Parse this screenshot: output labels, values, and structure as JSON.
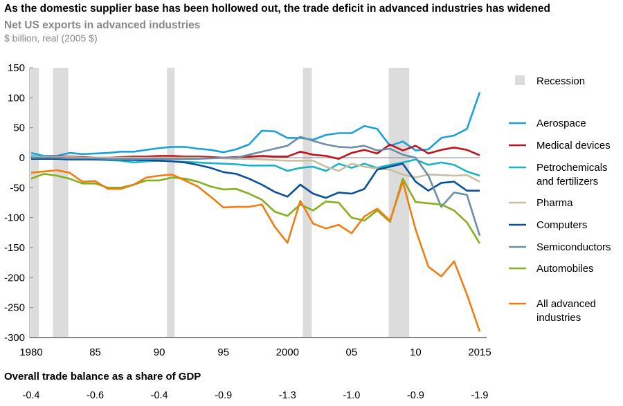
{
  "title": "As the domestic supplier base has been hollowed out, the trade deficit in advanced industries has widened",
  "subtitle": "Net US exports in advanced industries",
  "unit": "$ billion, real (2005 $)",
  "gdp_row": {
    "title": "Overall trade balance as a share of GDP",
    "values": [
      "-0.4",
      "-0.6",
      "-0.4",
      "-0.9",
      "-1.3",
      "-1.0",
      "-0.9",
      "-1.9"
    ]
  },
  "chart_data": {
    "type": "line",
    "title": "Net US exports in advanced industries",
    "ylabel": "$ billion, real (2005 $)",
    "ylim": [
      -300,
      150
    ],
    "yticks": [
      150,
      100,
      50,
      0,
      -50,
      -100,
      -150,
      -200,
      -250,
      -300
    ],
    "xlim": [
      1980,
      2015
    ],
    "xticks": [
      1980,
      1985,
      1990,
      1995,
      2000,
      2005,
      2010,
      2015
    ],
    "xtick_labels": [
      "1980",
      "85",
      "90",
      "95",
      "2000",
      "05",
      "10",
      "2015"
    ],
    "legend_position": "right",
    "recession_label": "Recession",
    "recessions": [
      [
        1980,
        1980.6
      ],
      [
        1981.7,
        1982.9
      ],
      [
        1990.6,
        1991.2
      ],
      [
        2001.2,
        2001.9
      ],
      [
        2007.9,
        2009.5
      ]
    ],
    "x": [
      1980,
      1981,
      1982,
      1983,
      1984,
      1985,
      1986,
      1987,
      1988,
      1989,
      1990,
      1991,
      1992,
      1993,
      1994,
      1995,
      1996,
      1997,
      1998,
      1999,
      2000,
      2001,
      2002,
      2003,
      2004,
      2005,
      2006,
      2007,
      2008,
      2009,
      2010,
      2011,
      2012,
      2013,
      2014,
      2015
    ],
    "series": [
      {
        "name": "Aerospace",
        "color": "#1aa0d8",
        "values": [
          8,
          3,
          3,
          8,
          6,
          7,
          8,
          10,
          10,
          13,
          16,
          18,
          18,
          15,
          13,
          9,
          14,
          22,
          45,
          44,
          33,
          33,
          30,
          38,
          41,
          41,
          53,
          48,
          20,
          27,
          12,
          14,
          33,
          37,
          48,
          109
        ]
      },
      {
        "name": "Medical devices",
        "color": "#c0141e",
        "values": [
          0,
          1,
          2,
          2,
          1,
          0,
          0,
          1,
          2,
          2,
          3,
          3,
          2,
          2,
          1,
          0,
          1,
          2,
          3,
          2,
          2,
          10,
          5,
          3,
          -2,
          8,
          13,
          7,
          22,
          12,
          20,
          7,
          13,
          17,
          13,
          4
        ]
      },
      {
        "name": "Petrochemicals and fertilizers",
        "color": "#1ab2c8",
        "values": [
          3,
          1,
          0,
          -1,
          -2,
          -3,
          -4,
          -5,
          -8,
          -6,
          -5,
          -6,
          -7,
          -8,
          -9,
          -10,
          -11,
          -13,
          -13,
          -13,
          -22,
          -17,
          -15,
          -22,
          -10,
          -17,
          -10,
          -17,
          -12,
          -8,
          -3,
          -12,
          -8,
          -12,
          -23,
          -30
        ]
      },
      {
        "name": "Pharma",
        "color": "#c8bfa0",
        "values": [
          1,
          1,
          1,
          1,
          0,
          0,
          0,
          0,
          0,
          0,
          0,
          0,
          0,
          0,
          -1,
          -1,
          -2,
          -2,
          -3,
          -4,
          -5,
          -5,
          -5,
          -15,
          -22,
          -10,
          -15,
          -18,
          -20,
          -28,
          -33,
          -28,
          -29,
          -30,
          -29,
          -40
        ]
      },
      {
        "name": "Computers",
        "color": "#0a4f9a",
        "values": [
          -2,
          -2,
          -2,
          -3,
          -3,
          -3,
          -3,
          -3,
          -4,
          -4,
          -5,
          -6,
          -8,
          -12,
          -17,
          -24,
          -27,
          -35,
          -45,
          -57,
          -65,
          -45,
          -60,
          -67,
          -58,
          -60,
          -52,
          -20,
          -15,
          -10,
          -40,
          -55,
          -42,
          -40,
          -55,
          -55
        ]
      },
      {
        "name": "Semiconductors",
        "color": "#6c8ea8",
        "values": [
          0,
          0,
          0,
          -1,
          -1,
          -1,
          -2,
          -2,
          -2,
          -2,
          -2,
          -2,
          -2,
          -2,
          -1,
          0,
          0,
          5,
          10,
          15,
          20,
          35,
          28,
          22,
          18,
          17,
          20,
          12,
          15,
          5,
          0,
          -30,
          -82,
          -58,
          -62,
          -130
        ]
      },
      {
        "name": "Automobiles",
        "color": "#84b01c",
        "values": [
          -35,
          -27,
          -30,
          -35,
          -43,
          -43,
          -50,
          -50,
          -45,
          -38,
          -38,
          -33,
          -35,
          -40,
          -48,
          -53,
          -52,
          -60,
          -70,
          -90,
          -97,
          -78,
          -88,
          -73,
          -75,
          -100,
          -105,
          -88,
          -107,
          -35,
          -74,
          -76,
          -78,
          -88,
          -108,
          -143
        ]
      },
      {
        "name": "All advanced industries",
        "color": "#f07d12",
        "values": [
          -25,
          -23,
          -21,
          -25,
          -40,
          -39,
          -52,
          -52,
          -45,
          -33,
          -30,
          -28,
          -38,
          -48,
          -65,
          -83,
          -82,
          -82,
          -78,
          -115,
          -142,
          -72,
          -110,
          -118,
          -112,
          -126,
          -98,
          -85,
          -105,
          -40,
          -120,
          -182,
          -198,
          -173,
          -228,
          -290
        ]
      }
    ],
    "legend_labels": [
      [
        "Aerospace"
      ],
      [
        "Medical devices"
      ],
      [
        "Petrochemicals",
        "and fertilizers"
      ],
      [
        "Pharma"
      ],
      [
        "Computers"
      ],
      [
        "Semiconductors"
      ],
      [
        "Automobiles"
      ],
      [
        "All advanced",
        "industries"
      ]
    ]
  }
}
